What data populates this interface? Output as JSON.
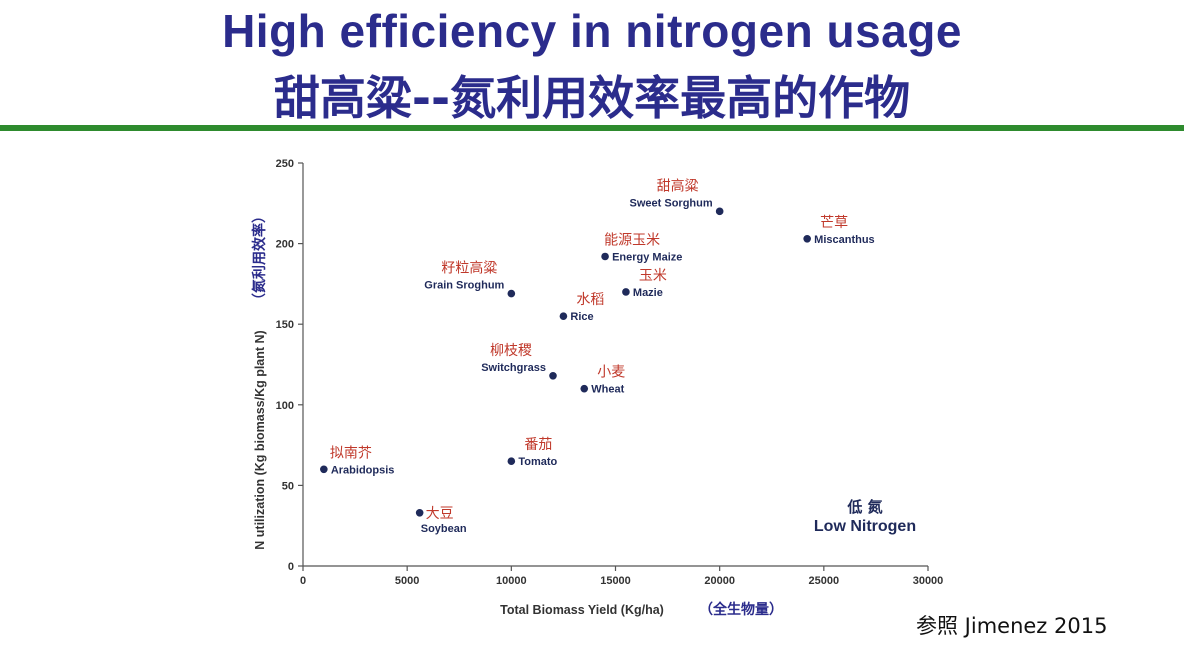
{
  "slide": {
    "title_en": "High efficiency in nitrogen usage",
    "title_zh": "甜高粱--氮利用效率最高的作物",
    "reference": "参照 Jimenez 2015"
  },
  "colors": {
    "title": "#2b2c8c",
    "divider": "#2e8b2e",
    "point": "#1f2a5a",
    "label_zh": "#c0392b",
    "label_en": "#1f2a5a",
    "annotation": "#1f2a5a"
  },
  "chart_data": {
    "type": "scatter",
    "xlabel": "Total Biomass Yield (Kg/ha)",
    "xlabel_zh": "（全生物量）",
    "ylabel": "N utilization (Kg biomass/Kg plant N)",
    "ylabel_zh": "（氮利用效率）",
    "xlim": [
      0,
      30000
    ],
    "ylim": [
      0,
      250
    ],
    "xticks": [
      0,
      5000,
      10000,
      15000,
      20000,
      25000,
      30000
    ],
    "yticks": [
      0,
      50,
      100,
      150,
      200,
      250
    ],
    "points": [
      {
        "name": "Sweet Sorghum",
        "name_zh": "甜高粱",
        "x": 20000,
        "y": 220,
        "label_pos": "upper-left"
      },
      {
        "name": "Miscanthus",
        "name_zh": "芒草",
        "x": 24200,
        "y": 203,
        "label_pos": "right"
      },
      {
        "name": "Energy Maize",
        "name_zh": "能源玉米",
        "x": 14500,
        "y": 192,
        "label_pos": "right"
      },
      {
        "name": "Grain Sroghum",
        "name_zh": "籽粒高粱",
        "x": 10000,
        "y": 169,
        "label_pos": "upper-left"
      },
      {
        "name": "Mazie",
        "name_zh": "玉米",
        "x": 15500,
        "y": 170,
        "label_pos": "right"
      },
      {
        "name": "Rice",
        "name_zh": "水稻",
        "x": 12500,
        "y": 155,
        "label_pos": "right"
      },
      {
        "name": "Switchgrass",
        "name_zh": "柳枝稷",
        "x": 12000,
        "y": 118,
        "label_pos": "upper-left"
      },
      {
        "name": "Wheat",
        "name_zh": "小麦",
        "x": 13500,
        "y": 110,
        "label_pos": "right"
      },
      {
        "name": "Tomato",
        "name_zh": "番茄",
        "x": 10000,
        "y": 65,
        "label_pos": "right"
      },
      {
        "name": "Arabidopsis",
        "name_zh": "拟南芥",
        "x": 1000,
        "y": 60,
        "label_pos": "right"
      },
      {
        "name": "Soybean",
        "name_zh": "大豆",
        "x": 5600,
        "y": 33,
        "label_pos": "below"
      }
    ],
    "annotation": {
      "zh": "低 氮",
      "en": "Low Nitrogen"
    }
  }
}
